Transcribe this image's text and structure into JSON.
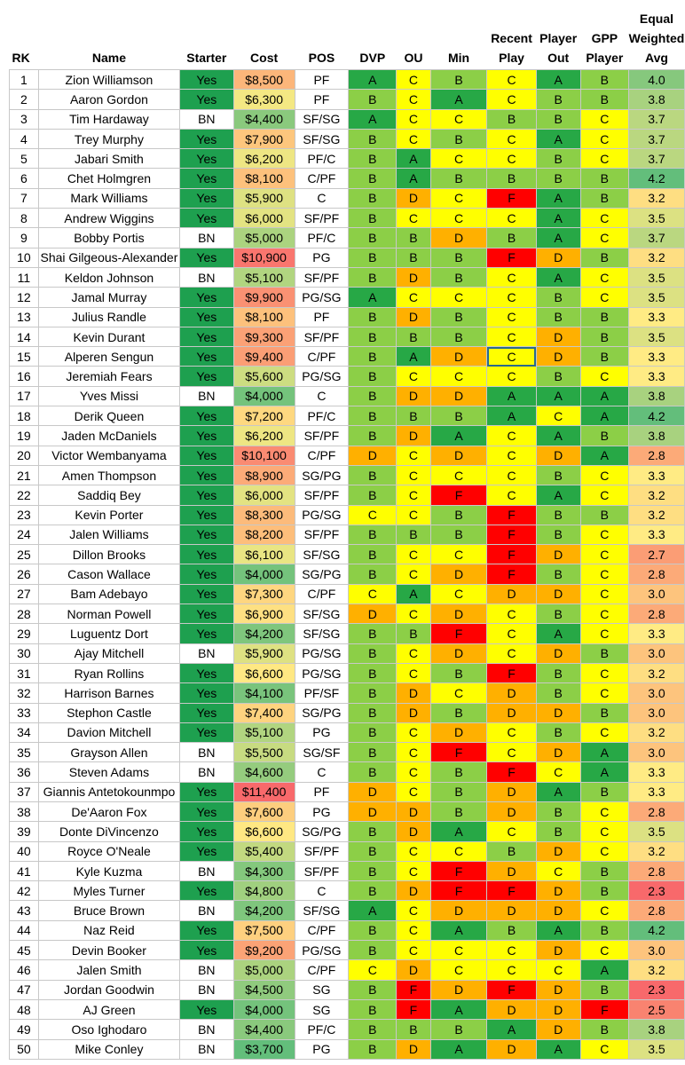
{
  "headers": {
    "rk": "RK",
    "name": "Name",
    "starter": "Starter",
    "cost": "Cost",
    "pos": "POS",
    "dvp": "DVP",
    "ou": "OU",
    "min": "Min",
    "recent_play": [
      "Recent",
      "Play"
    ],
    "player_out": [
      "Player",
      "Out"
    ],
    "gpp_player": [
      "GPP",
      "Player"
    ],
    "avg": [
      "Equal",
      "Weighted",
      "Avg"
    ]
  },
  "colors": {
    "starter_yes": "#1ea04f",
    "grade_A": "#27a846",
    "grade_B": "#8ccf47",
    "grade_C": "#ffff00",
    "grade_D": "#ffb000",
    "grade_F": "#ff0000"
  },
  "rows": [
    [
      "1",
      "Zion Williamson",
      "Yes",
      "$8,500",
      "PF",
      "A",
      "C",
      "B",
      "C",
      "A",
      "B",
      "4.0"
    ],
    [
      "2",
      "Aaron Gordon",
      "Yes",
      "$6,300",
      "PF",
      "B",
      "C",
      "A",
      "C",
      "B",
      "B",
      "3.8"
    ],
    [
      "3",
      "Tim Hardaway",
      "BN",
      "$4,400",
      "SF/SG",
      "A",
      "C",
      "C",
      "B",
      "B",
      "C",
      "3.7"
    ],
    [
      "4",
      "Trey Murphy",
      "Yes",
      "$7,900",
      "SF/SG",
      "B",
      "C",
      "B",
      "C",
      "A",
      "C",
      "3.7"
    ],
    [
      "5",
      "Jabari Smith",
      "Yes",
      "$6,200",
      "PF/C",
      "B",
      "A",
      "C",
      "C",
      "B",
      "C",
      "3.7"
    ],
    [
      "6",
      "Chet Holmgren",
      "Yes",
      "$8,100",
      "C/PF",
      "B",
      "A",
      "B",
      "B",
      "B",
      "B",
      "4.2"
    ],
    [
      "7",
      "Mark Williams",
      "Yes",
      "$5,900",
      "C",
      "B",
      "D",
      "C",
      "F",
      "A",
      "B",
      "3.2"
    ],
    [
      "8",
      "Andrew Wiggins",
      "Yes",
      "$6,000",
      "SF/PF",
      "B",
      "C",
      "C",
      "C",
      "A",
      "C",
      "3.5"
    ],
    [
      "9",
      "Bobby Portis",
      "BN",
      "$5,000",
      "PF/C",
      "B",
      "B",
      "D",
      "B",
      "A",
      "C",
      "3.7"
    ],
    [
      "10",
      "Shai Gilgeous-Alexander",
      "Yes",
      "$10,900",
      "PG",
      "B",
      "B",
      "B",
      "F",
      "D",
      "B",
      "3.2"
    ],
    [
      "11",
      "Keldon Johnson",
      "BN",
      "$5,100",
      "SF/PF",
      "B",
      "D",
      "B",
      "C",
      "A",
      "C",
      "3.5"
    ],
    [
      "12",
      "Jamal Murray",
      "Yes",
      "$9,900",
      "PG/SG",
      "A",
      "C",
      "C",
      "C",
      "B",
      "C",
      "3.5"
    ],
    [
      "13",
      "Julius Randle",
      "Yes",
      "$8,100",
      "PF",
      "B",
      "D",
      "B",
      "C",
      "B",
      "B",
      "3.3"
    ],
    [
      "14",
      "Kevin Durant",
      "Yes",
      "$9,300",
      "SF/PF",
      "B",
      "B",
      "B",
      "C",
      "D",
      "B",
      "3.5"
    ],
    [
      "15",
      "Alperen Sengun",
      "Yes",
      "$9,400",
      "C/PF",
      "B",
      "A",
      "D",
      "C",
      "D",
      "B",
      "3.3"
    ],
    [
      "16",
      "Jeremiah Fears",
      "Yes",
      "$5,600",
      "PG/SG",
      "B",
      "C",
      "C",
      "C",
      "B",
      "C",
      "3.3"
    ],
    [
      "17",
      "Yves Missi",
      "BN",
      "$4,000",
      "C",
      "B",
      "D",
      "D",
      "A",
      "A",
      "A",
      "3.8"
    ],
    [
      "18",
      "Derik Queen",
      "Yes",
      "$7,200",
      "PF/C",
      "B",
      "B",
      "B",
      "A",
      "C",
      "A",
      "4.2"
    ],
    [
      "19",
      "Jaden McDaniels",
      "Yes",
      "$6,200",
      "SF/PF",
      "B",
      "D",
      "A",
      "C",
      "A",
      "B",
      "3.8"
    ],
    [
      "20",
      "Victor Wembanyama",
      "Yes",
      "$10,100",
      "C/PF",
      "D",
      "C",
      "D",
      "C",
      "D",
      "A",
      "2.8"
    ],
    [
      "21",
      "Amen Thompson",
      "Yes",
      "$8,900",
      "SG/PG",
      "B",
      "C",
      "C",
      "C",
      "B",
      "C",
      "3.3"
    ],
    [
      "22",
      "Saddiq Bey",
      "Yes",
      "$6,000",
      "SF/PF",
      "B",
      "C",
      "F",
      "C",
      "A",
      "C",
      "3.2"
    ],
    [
      "23",
      "Kevin Porter",
      "Yes",
      "$8,300",
      "PG/SG",
      "C",
      "C",
      "B",
      "F",
      "B",
      "B",
      "3.2"
    ],
    [
      "24",
      "Jalen Williams",
      "Yes",
      "$8,200",
      "SF/PF",
      "B",
      "B",
      "B",
      "F",
      "B",
      "C",
      "3.3"
    ],
    [
      "25",
      "Dillon Brooks",
      "Yes",
      "$6,100",
      "SF/SG",
      "B",
      "C",
      "C",
      "F",
      "D",
      "C",
      "2.7"
    ],
    [
      "26",
      "Cason Wallace",
      "Yes",
      "$4,000",
      "SG/PG",
      "B",
      "C",
      "D",
      "F",
      "B",
      "C",
      "2.8"
    ],
    [
      "27",
      "Bam Adebayo",
      "Yes",
      "$7,300",
      "C/PF",
      "C",
      "A",
      "C",
      "D",
      "D",
      "C",
      "3.0"
    ],
    [
      "28",
      "Norman Powell",
      "Yes",
      "$6,900",
      "SF/SG",
      "D",
      "C",
      "D",
      "C",
      "B",
      "C",
      "2.8"
    ],
    [
      "29",
      "Luguentz Dort",
      "Yes",
      "$4,200",
      "SF/SG",
      "B",
      "B",
      "F",
      "C",
      "A",
      "C",
      "3.3"
    ],
    [
      "30",
      "Ajay Mitchell",
      "BN",
      "$5,900",
      "PG/SG",
      "B",
      "C",
      "D",
      "C",
      "D",
      "B",
      "3.0"
    ],
    [
      "31",
      "Ryan Rollins",
      "Yes",
      "$6,600",
      "PG/SG",
      "B",
      "C",
      "B",
      "F",
      "B",
      "C",
      "3.2"
    ],
    [
      "32",
      "Harrison Barnes",
      "Yes",
      "$4,100",
      "PF/SF",
      "B",
      "D",
      "C",
      "D",
      "B",
      "C",
      "3.0"
    ],
    [
      "33",
      "Stephon Castle",
      "Yes",
      "$7,400",
      "SG/PG",
      "B",
      "D",
      "B",
      "D",
      "D",
      "B",
      "3.0"
    ],
    [
      "34",
      "Davion Mitchell",
      "Yes",
      "$5,100",
      "PG",
      "B",
      "C",
      "D",
      "C",
      "B",
      "C",
      "3.2"
    ],
    [
      "35",
      "Grayson Allen",
      "BN",
      "$5,500",
      "SG/SF",
      "B",
      "C",
      "F",
      "C",
      "D",
      "A",
      "3.0"
    ],
    [
      "36",
      "Steven Adams",
      "BN",
      "$4,600",
      "C",
      "B",
      "C",
      "B",
      "F",
      "C",
      "A",
      "3.3"
    ],
    [
      "37",
      "Giannis Antetokounmpo",
      "Yes",
      "$11,400",
      "PF",
      "D",
      "C",
      "B",
      "D",
      "A",
      "B",
      "3.3"
    ],
    [
      "38",
      "De'Aaron Fox",
      "Yes",
      "$7,600",
      "PG",
      "D",
      "D",
      "B",
      "D",
      "B",
      "C",
      "2.8"
    ],
    [
      "39",
      "Donte DiVincenzo",
      "Yes",
      "$6,600",
      "SG/PG",
      "B",
      "D",
      "A",
      "C",
      "B",
      "C",
      "3.5"
    ],
    [
      "40",
      "Royce O'Neale",
      "Yes",
      "$5,400",
      "SF/PF",
      "B",
      "C",
      "C",
      "B",
      "D",
      "C",
      "3.2"
    ],
    [
      "41",
      "Kyle Kuzma",
      "BN",
      "$4,300",
      "SF/PF",
      "B",
      "C",
      "F",
      "D",
      "C",
      "B",
      "2.8"
    ],
    [
      "42",
      "Myles Turner",
      "Yes",
      "$4,800",
      "C",
      "B",
      "D",
      "F",
      "F",
      "D",
      "B",
      "2.3"
    ],
    [
      "43",
      "Bruce Brown",
      "BN",
      "$4,200",
      "SF/SG",
      "A",
      "C",
      "D",
      "D",
      "D",
      "C",
      "2.8"
    ],
    [
      "44",
      "Naz Reid",
      "Yes",
      "$7,500",
      "C/PF",
      "B",
      "C",
      "A",
      "B",
      "A",
      "B",
      "4.2"
    ],
    [
      "45",
      "Devin Booker",
      "Yes",
      "$9,200",
      "PG/SG",
      "B",
      "C",
      "C",
      "C",
      "D",
      "C",
      "3.0"
    ],
    [
      "46",
      "Jalen Smith",
      "BN",
      "$5,000",
      "C/PF",
      "C",
      "D",
      "C",
      "C",
      "C",
      "A",
      "3.2"
    ],
    [
      "47",
      "Jordan Goodwin",
      "BN",
      "$4,500",
      "SG",
      "B",
      "F",
      "D",
      "F",
      "D",
      "B",
      "2.3"
    ],
    [
      "48",
      "AJ Green",
      "Yes",
      "$4,000",
      "SG",
      "B",
      "F",
      "A",
      "D",
      "D",
      "F",
      "2.5"
    ],
    [
      "49",
      "Oso Ighodaro",
      "BN",
      "$4,400",
      "PF/C",
      "B",
      "B",
      "B",
      "A",
      "D",
      "B",
      "3.8"
    ],
    [
      "50",
      "Mike Conley",
      "BN",
      "$3,700",
      "PG",
      "B",
      "D",
      "A",
      "D",
      "A",
      "C",
      "3.5"
    ]
  ]
}
